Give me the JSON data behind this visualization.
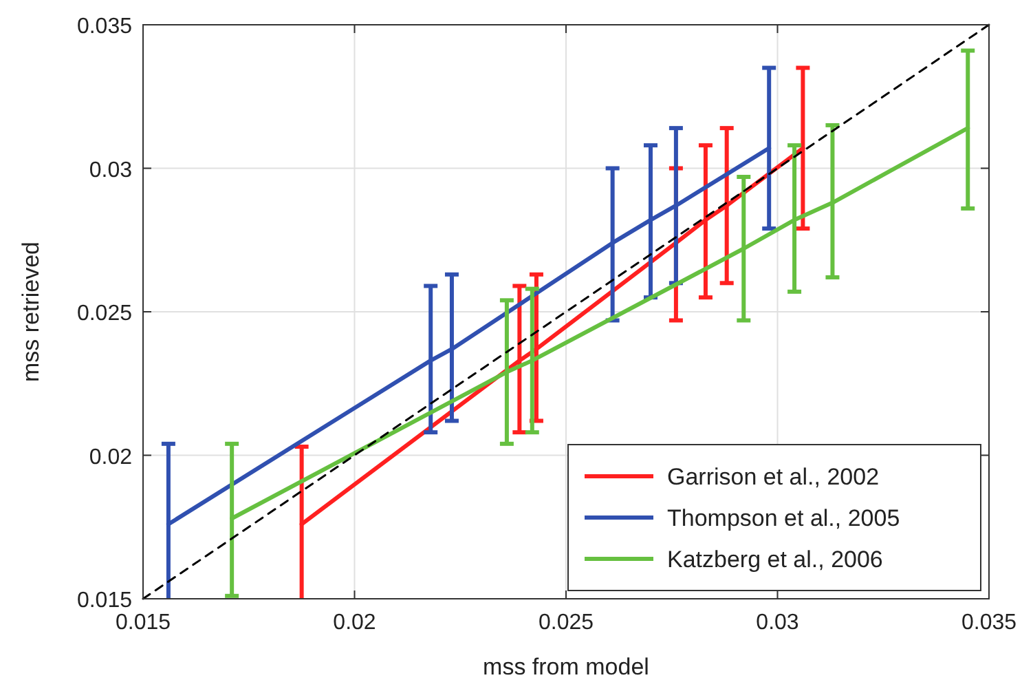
{
  "chart_data": {
    "type": "line",
    "xlabel": "mss from model",
    "ylabel": "mss retrieved",
    "xlim": [
      0.015,
      0.035
    ],
    "ylim": [
      0.015,
      0.035
    ],
    "xticks": [
      0.015,
      0.02,
      0.025,
      0.03,
      0.035
    ],
    "yticks": [
      0.015,
      0.02,
      0.025,
      0.03,
      0.035
    ],
    "grid": true,
    "legend": "bottom right",
    "marker": "none",
    "series": [
      {
        "name": "Garrison et al., 2002",
        "color": "#ff2020",
        "x": [
          0.01875,
          0.0239,
          0.0243,
          0.0276,
          0.0283,
          0.0288,
          0.0306
        ],
        "values": [
          0.0176,
          0.0233,
          0.0237,
          0.0274,
          0.0282,
          0.0287,
          0.0307
        ],
        "errors": [
          [
            0.015,
            0.0203
          ],
          [
            0.0208,
            0.0259
          ],
          [
            0.0212,
            0.0263
          ],
          [
            0.0247,
            0.03
          ],
          [
            0.0255,
            0.0308
          ],
          [
            0.026,
            0.0314
          ],
          [
            0.0279,
            0.0335
          ]
        ]
      },
      {
        "name": "Thompson et al., 2005",
        "color": "#3050b0",
        "x": [
          0.0156,
          0.0218,
          0.0223,
          0.0261,
          0.027,
          0.0276,
          0.0298
        ],
        "values": [
          0.0176,
          0.0233,
          0.0237,
          0.0274,
          0.0282,
          0.0287,
          0.0307
        ],
        "errors": [
          [
            0.015,
            0.0204
          ],
          [
            0.0208,
            0.0259
          ],
          [
            0.0212,
            0.0263
          ],
          [
            0.0247,
            0.03
          ],
          [
            0.0255,
            0.0308
          ],
          [
            0.026,
            0.0314
          ],
          [
            0.0279,
            0.0335
          ]
        ]
      },
      {
        "name": "Katzberg et al., 2006",
        "color": "#66c040",
        "x": [
          0.0171,
          0.0236,
          0.0242,
          0.0292,
          0.0304,
          0.0313,
          0.0345
        ],
        "values": [
          0.0178,
          0.0229,
          0.0233,
          0.0272,
          0.0282,
          0.0288,
          0.0314
        ],
        "errors": [
          [
            0.0151,
            0.0204
          ],
          [
            0.0204,
            0.0254
          ],
          [
            0.0208,
            0.0258
          ],
          [
            0.0247,
            0.0297
          ],
          [
            0.0257,
            0.0308
          ],
          [
            0.0262,
            0.0315
          ],
          [
            0.0286,
            0.0341
          ]
        ]
      },
      {
        "color": "#000000",
        "line_style": "dashed",
        "x": [
          0.015,
          0.035
        ],
        "values": [
          0.015,
          0.035
        ]
      }
    ]
  }
}
